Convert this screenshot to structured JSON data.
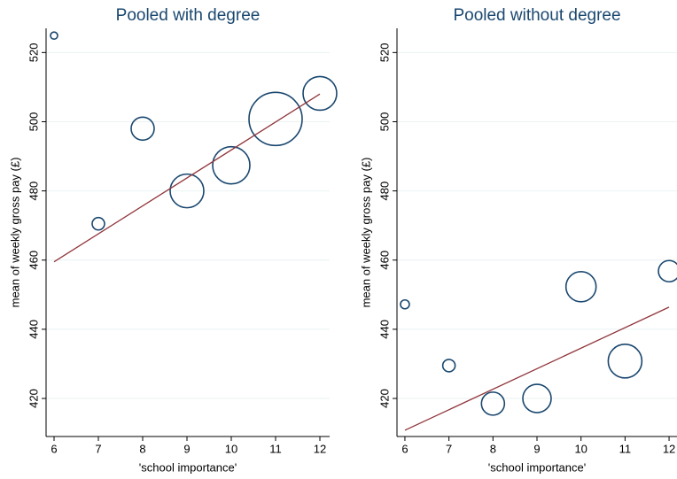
{
  "chart_data": [
    {
      "type": "scatter",
      "title": "Pooled with degree",
      "xlabel": "'school importance'",
      "ylabel": "mean of weekly gross pay (£)",
      "xlim": [
        5.82,
        12.22
      ],
      "ylim": [
        409,
        527
      ],
      "xticks": [
        6,
        7,
        8,
        9,
        10,
        11,
        12
      ],
      "yticks": [
        420,
        440,
        460,
        480,
        500,
        520
      ],
      "grid": true,
      "series": [
        {
          "color": "#1a476f",
          "x": [
            6,
            7,
            8,
            9,
            10,
            11,
            12
          ],
          "values": [
            524.9,
            470.5,
            498,
            480,
            487.4,
            500.8,
            508.2
          ],
          "sizes": [
            16,
            49,
            169,
            361,
            441,
            900,
            361
          ]
        },
        {
          "color": "#90353b",
          "x": [
            6,
            12
          ],
          "values": [
            459.5,
            508
          ]
        }
      ]
    },
    {
      "type": "scatter",
      "title": "Pooled without degree",
      "xlabel": "'school importance'",
      "ylabel": "mean of weekly gross pay (£)",
      "xlim": [
        5.82,
        12.18
      ],
      "ylim": [
        409,
        527
      ],
      "xticks": [
        6,
        7,
        8,
        9,
        10,
        11,
        12
      ],
      "yticks": [
        420,
        440,
        460,
        480,
        500,
        520
      ],
      "grid": true,
      "series": [
        {
          "color": "#1a476f",
          "x": [
            6,
            7,
            8,
            9,
            10,
            11,
            12
          ],
          "values": [
            447.2,
            429.5,
            418.5,
            420,
            452.3,
            430.8,
            456.8
          ],
          "sizes": [
            25,
            49,
            169,
            256,
            289,
            361,
            144
          ]
        },
        {
          "color": "#90353b",
          "x": [
            6,
            12
          ],
          "values": [
            410.8,
            446.4
          ]
        }
      ]
    }
  ]
}
